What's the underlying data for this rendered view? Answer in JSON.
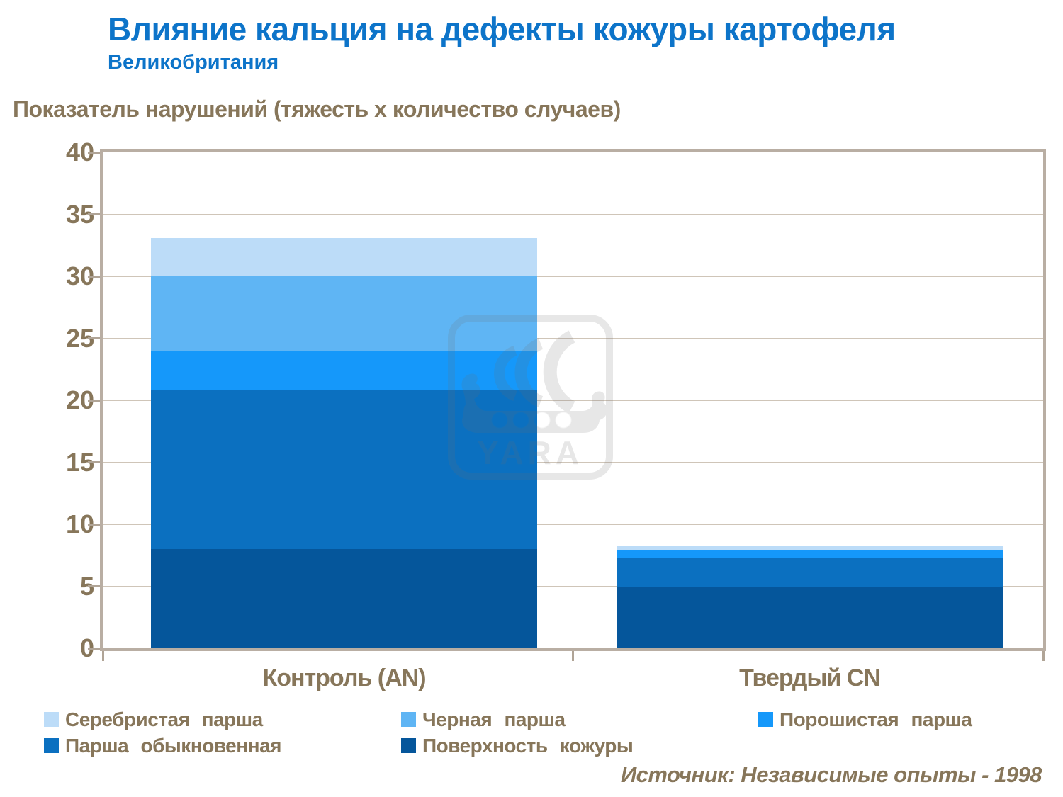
{
  "header": {
    "title": "Влияние кальция на дефекты кожуры картофеля",
    "subtitle": "Великобритания"
  },
  "axis_title": "Показатель нарушений (тяжесть х количество случаев)",
  "source": "Источник: Независимые опыты - 1998",
  "watermark_text": "YARA",
  "colors": {
    "title_blue": "#0d74c9",
    "text_brown": "#87765a",
    "frame": "#b9aea3",
    "gridline": "#cfc5b8"
  },
  "chart_data": {
    "type": "bar",
    "stacked": true,
    "categories": [
      "Контроль (AN)",
      "Твердый CN"
    ],
    "series": [
      {
        "name": "Поверхность кожуры",
        "color": "#05569b",
        "values": [
          8,
          5
        ]
      },
      {
        "name": "Парша обыкновенная",
        "color": "#0b70c0",
        "values": [
          12.8,
          2.3
        ]
      },
      {
        "name": "Порошистая парша",
        "color": "#1598fa",
        "values": [
          3.2,
          0.6
        ]
      },
      {
        "name": "Черная парша",
        "color": "#5fb5f4",
        "values": [
          6,
          0
        ]
      },
      {
        "name": "Серебристая парша",
        "color": "#bcdcf8",
        "values": [
          3.1,
          0.4
        ]
      }
    ],
    "totals": [
      33.1,
      8.3
    ],
    "ylim": [
      0,
      40
    ],
    "ytick_step": 5,
    "grid": true,
    "legend_position": "bottom"
  },
  "legend": {
    "rows": [
      [
        {
          "label": "Серебристая парша",
          "color": "#bcdcf8"
        },
        {
          "label": "Черная парша",
          "color": "#5fb5f4"
        },
        {
          "label": "Порошистая парша",
          "color": "#1598fa"
        }
      ],
      [
        {
          "label": "Парша обыкновенная",
          "color": "#0b70c0"
        },
        {
          "label": "Поверхность кожуры",
          "color": "#05569b"
        }
      ]
    ]
  }
}
